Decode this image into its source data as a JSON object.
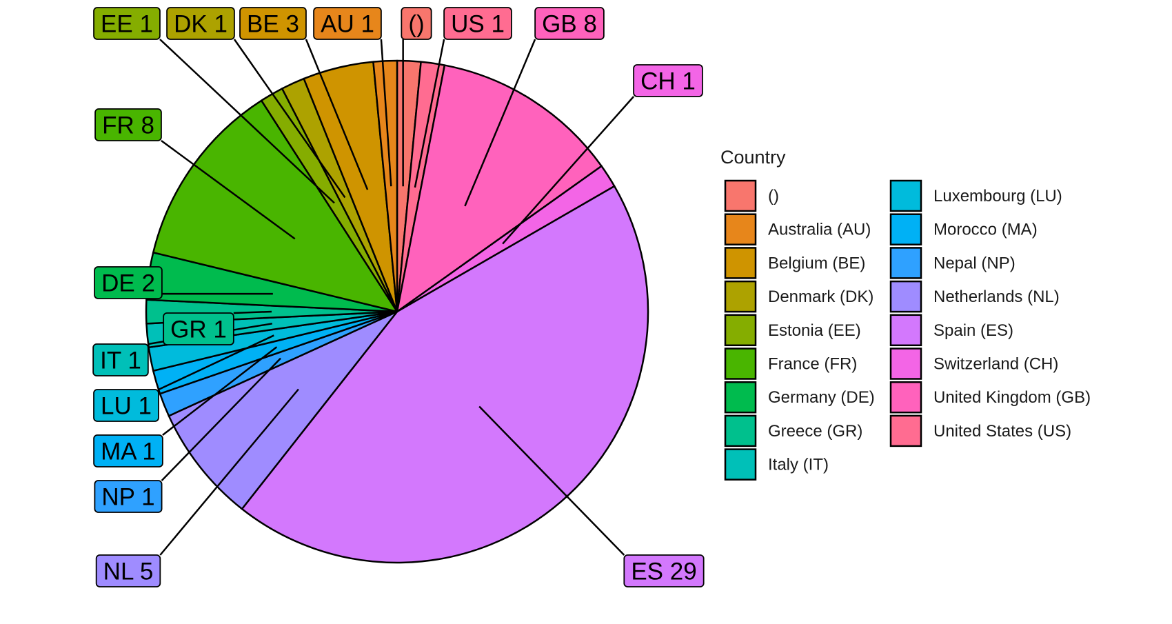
{
  "chart_data": {
    "type": "pie",
    "legend": {
      "title": "Country",
      "position": "right",
      "columns": 2
    },
    "slices": [
      {
        "code": "",
        "label": "()",
        "legend": "()",
        "value": 1,
        "color": "#F8766D"
      },
      {
        "code": "US",
        "label": "US 1",
        "legend": "United States (US)",
        "value": 1,
        "color": "#FF6C91"
      },
      {
        "code": "GB",
        "label": "GB 8",
        "legend": "United Kingdom (GB)",
        "value": 8,
        "color": "#FF62BC"
      },
      {
        "code": "CH",
        "label": "CH 1",
        "legend": "Switzerland (CH)",
        "value": 1,
        "color": "#F365E6"
      },
      {
        "code": "ES",
        "label": "ES 29",
        "legend": "Spain (ES)",
        "value": 29,
        "color": "#D378FD"
      },
      {
        "code": "NL",
        "label": "NL 5",
        "legend": "Netherlands (NL)",
        "value": 5,
        "color": "#9F8CFF"
      },
      {
        "code": "NP",
        "label": "NP 1",
        "legend": "Nepal (NP)",
        "value": 1,
        "color": "#2FA1FF"
      },
      {
        "code": "MA",
        "label": "MA 1",
        "legend": "Morocco (MA)",
        "value": 1,
        "color": "#00B1F5"
      },
      {
        "code": "LU",
        "label": "LU 1",
        "legend": "Luxembourg (LU)",
        "value": 1,
        "color": "#00BBDC"
      },
      {
        "code": "IT",
        "label": "IT 1",
        "legend": "Italy (IT)",
        "value": 1,
        "color": "#00C0B8"
      },
      {
        "code": "GR",
        "label": "GR 1",
        "legend": "Greece (GR)",
        "value": 1,
        "color": "#00C08D"
      },
      {
        "code": "DE",
        "label": "DE 2",
        "legend": "Germany (DE)",
        "value": 2,
        "color": "#00BB4E"
      },
      {
        "code": "FR",
        "label": "FR 8",
        "legend": "France (FR)",
        "value": 8,
        "color": "#49B500"
      },
      {
        "code": "EE",
        "label": "EE 1",
        "legend": "Estonia (EE)",
        "value": 1,
        "color": "#85AD00"
      },
      {
        "code": "DK",
        "label": "DK 1",
        "legend": "Denmark (DK)",
        "value": 1,
        "color": "#ADA200"
      },
      {
        "code": "BE",
        "label": "BE 3",
        "legend": "Belgium (BE)",
        "value": 3,
        "color": "#CF9400"
      },
      {
        "code": "AU",
        "label": "AU 1",
        "legend": "Australia (AU)",
        "value": 1,
        "color": "#E7861B"
      }
    ],
    "legend_order": [
      "",
      "AU",
      "BE",
      "DK",
      "EE",
      "FR",
      "DE",
      "GR",
      "IT",
      "LU",
      "MA",
      "NP",
      "NL",
      "ES",
      "CH",
      "GB",
      "US"
    ]
  }
}
